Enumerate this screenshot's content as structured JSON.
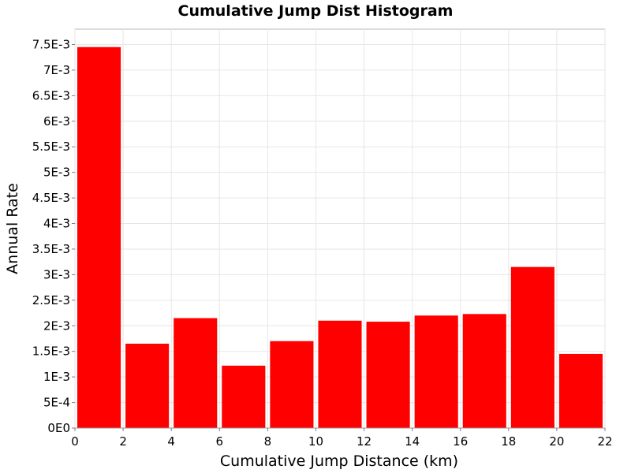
{
  "chart_data": {
    "type": "bar",
    "title": "Cumulative Jump Dist Histogram",
    "xlabel": "Cumulative Jump Distance (km)",
    "ylabel": "Annual Rate",
    "xlim": [
      0,
      22
    ],
    "ylim": [
      0,
      0.0078
    ],
    "x_ticks": [
      0,
      2,
      4,
      6,
      8,
      10,
      12,
      14,
      16,
      18,
      20,
      22
    ],
    "x_tick_labels": [
      "0",
      "2",
      "4",
      "6",
      "8",
      "10",
      "12",
      "14",
      "16",
      "18",
      "20",
      "22"
    ],
    "y_ticks": [
      0,
      0.0005,
      0.001,
      0.0015,
      0.002,
      0.0025,
      0.003,
      0.0035,
      0.004,
      0.0045,
      0.005,
      0.0055,
      0.006,
      0.0065,
      0.007,
      0.0075
    ],
    "y_tick_labels": [
      "0E0",
      "5E-4",
      "1E-3",
      "1.5E-3",
      "2E-3",
      "2.5E-3",
      "3E-3",
      "3.5E-3",
      "4E-3",
      "4.5E-3",
      "5E-3",
      "5.5E-3",
      "6E-3",
      "6.5E-3",
      "7E-3",
      "7.5E-3"
    ],
    "bin_width": 2,
    "bins": [
      {
        "x": 1,
        "value": 0.00745
      },
      {
        "x": 3,
        "value": 0.00165
      },
      {
        "x": 5,
        "value": 0.00215
      },
      {
        "x": 7,
        "value": 0.00122
      },
      {
        "x": 9,
        "value": 0.0017
      },
      {
        "x": 11,
        "value": 0.0021
      },
      {
        "x": 13,
        "value": 0.00208
      },
      {
        "x": 15,
        "value": 0.0022
      },
      {
        "x": 17,
        "value": 0.00223
      },
      {
        "x": 19,
        "value": 0.00315
      },
      {
        "x": 21,
        "value": 0.00145
      }
    ],
    "bar_color": "#ff0000",
    "grid": true
  }
}
